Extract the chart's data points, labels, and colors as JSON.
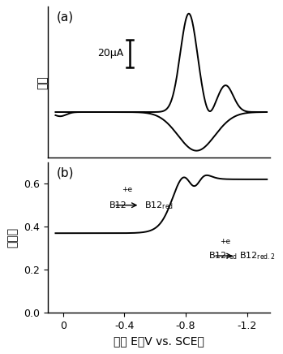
{
  "fig_width": 3.49,
  "fig_height": 4.36,
  "dpi": 100,
  "background_color": "#ffffff",
  "label_a": "(a)",
  "label_b": "(b)",
  "ylabel_a": "电流",
  "ylabel_b": "吸光度",
  "xlabel": "电位 E（V vs. SCE）",
  "scalebar_text": "20μA",
  "xlim": [
    0.1,
    -1.35
  ],
  "xticks": [
    0,
    -0.4,
    -0.8,
    -1.2
  ],
  "xtick_labels": [
    "0",
    "-0.4",
    "-0.8",
    "-1.2"
  ],
  "ylim_b": [
    0.0,
    0.7
  ],
  "yticks_b": [
    0.0,
    0.2,
    0.4,
    0.6
  ]
}
